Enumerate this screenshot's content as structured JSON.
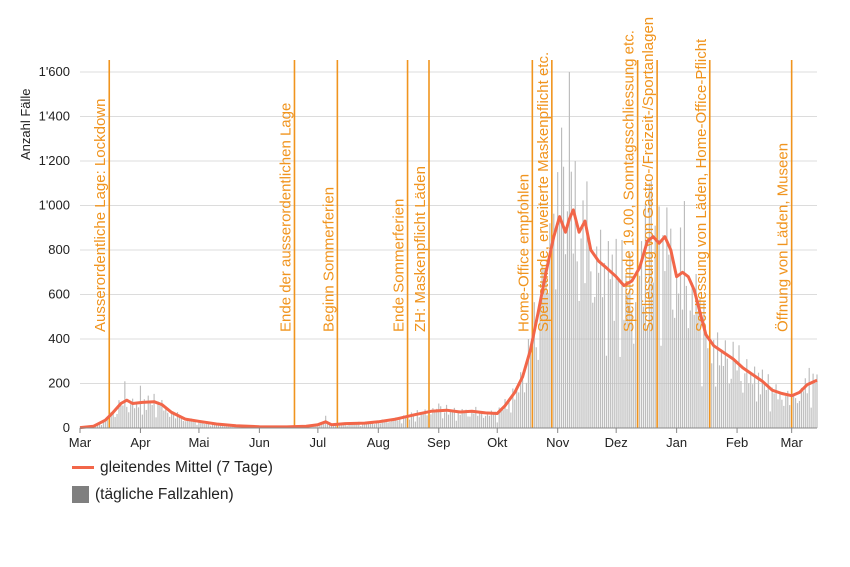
{
  "chart_data": {
    "type": "bar",
    "ylabel": "Anzahl Fälle",
    "ylim": [
      0,
      1600
    ],
    "yticks": [
      0,
      200,
      400,
      600,
      800,
      1000,
      1200,
      1400,
      1600
    ],
    "ytick_labels": [
      "0",
      "200",
      "400",
      "600",
      "800",
      "1'000",
      "1'200",
      "1'400",
      "1'600"
    ],
    "grid": true,
    "xtick_labels": [
      "Mar",
      "Apr",
      "Mai",
      "Jun",
      "Jul",
      "Aug",
      "Sep",
      "Okt",
      "Nov",
      "Dez",
      "Jan",
      "Feb",
      "Mar"
    ],
    "x_range": [
      "2020-03-01",
      "2021-03-14"
    ],
    "series": [
      {
        "name": "gleitendes Mittel (7 Tage)",
        "type": "line",
        "color": "#f26649",
        "points": [
          [
            "2020-03-01",
            2
          ],
          [
            "2020-03-08",
            8
          ],
          [
            "2020-03-14",
            35
          ],
          [
            "2020-03-18",
            70
          ],
          [
            "2020-03-22",
            110
          ],
          [
            "2020-03-25",
            125
          ],
          [
            "2020-03-28",
            110
          ],
          [
            "2020-04-02",
            115
          ],
          [
            "2020-04-08",
            118
          ],
          [
            "2020-04-12",
            105
          ],
          [
            "2020-04-17",
            70
          ],
          [
            "2020-04-24",
            40
          ],
          [
            "2020-05-01",
            30
          ],
          [
            "2020-05-10",
            18
          ],
          [
            "2020-05-20",
            10
          ],
          [
            "2020-06-01",
            6
          ],
          [
            "2020-06-15",
            5
          ],
          [
            "2020-06-25",
            8
          ],
          [
            "2020-07-01",
            15
          ],
          [
            "2020-07-05",
            28
          ],
          [
            "2020-07-08",
            15
          ],
          [
            "2020-07-15",
            20
          ],
          [
            "2020-07-25",
            22
          ],
          [
            "2020-08-01",
            28
          ],
          [
            "2020-08-10",
            40
          ],
          [
            "2020-08-20",
            60
          ],
          [
            "2020-08-28",
            75
          ],
          [
            "2020-09-05",
            80
          ],
          [
            "2020-09-12",
            72
          ],
          [
            "2020-09-18",
            75
          ],
          [
            "2020-09-25",
            68
          ],
          [
            "2020-10-01",
            65
          ],
          [
            "2020-10-05",
            100
          ],
          [
            "2020-10-10",
            160
          ],
          [
            "2020-10-14",
            230
          ],
          [
            "2020-10-18",
            350
          ],
          [
            "2020-10-22",
            520
          ],
          [
            "2020-10-26",
            700
          ],
          [
            "2020-10-30",
            860
          ],
          [
            "2020-11-02",
            950
          ],
          [
            "2020-11-05",
            880
          ],
          [
            "2020-11-07",
            940
          ],
          [
            "2020-11-09",
            980
          ],
          [
            "2020-11-12",
            880
          ],
          [
            "2020-11-15",
            930
          ],
          [
            "2020-11-18",
            800
          ],
          [
            "2020-11-22",
            750
          ],
          [
            "2020-11-26",
            720
          ],
          [
            "2020-12-01",
            680
          ],
          [
            "2020-12-05",
            640
          ],
          [
            "2020-12-09",
            660
          ],
          [
            "2020-12-13",
            720
          ],
          [
            "2020-12-17",
            840
          ],
          [
            "2020-12-20",
            860
          ],
          [
            "2020-12-23",
            830
          ],
          [
            "2020-12-26",
            860
          ],
          [
            "2020-12-29",
            800
          ],
          [
            "2021-01-01",
            680
          ],
          [
            "2021-01-04",
            700
          ],
          [
            "2021-01-07",
            680
          ],
          [
            "2021-01-10",
            620
          ],
          [
            "2021-01-13",
            520
          ],
          [
            "2021-01-16",
            420
          ],
          [
            "2021-01-20",
            370
          ],
          [
            "2021-01-25",
            340
          ],
          [
            "2021-01-30",
            310
          ],
          [
            "2021-02-04",
            270
          ],
          [
            "2021-02-09",
            240
          ],
          [
            "2021-02-14",
            210
          ],
          [
            "2021-02-19",
            170
          ],
          [
            "2021-02-24",
            155
          ],
          [
            "2021-03-01",
            145
          ],
          [
            "2021-03-05",
            160
          ],
          [
            "2021-03-09",
            195
          ],
          [
            "2021-03-14",
            215
          ]
        ]
      },
      {
        "name": "(tägliche Fallzahlen)",
        "type": "bar",
        "color": "#bdbdbd",
        "legend_color": "#7f7f7f",
        "noise_pattern": [
          0.82,
          1.18,
          0.95,
          1.12,
          0.7,
          1.25,
          1.0,
          0.88,
          1.3,
          0.76,
          1.07,
          0.93,
          1.2,
          0.8,
          1.02
        ],
        "peaks": [
          [
            "2020-03-24",
            210
          ],
          [
            "2020-04-01",
            190
          ],
          [
            "2020-07-05",
            55
          ],
          [
            "2020-09-01",
            110
          ],
          [
            "2020-10-25",
            720
          ],
          [
            "2020-11-03",
            1350
          ],
          [
            "2020-11-05",
            1420
          ],
          [
            "2020-11-07",
            1640
          ],
          [
            "2020-11-10",
            1200
          ],
          [
            "2020-12-18",
            1100
          ],
          [
            "2021-01-05",
            1020
          ],
          [
            "2021-03-10",
            270
          ]
        ]
      }
    ],
    "annotations": [
      {
        "date": "2020-03-16",
        "label": "Ausserordentliche Lage: Lockdown"
      },
      {
        "date": "2020-06-19",
        "label": "Ende der ausserordentlichen Lage"
      },
      {
        "date": "2020-07-11",
        "label": "Beginn Sommerferien"
      },
      {
        "date": "2020-08-16",
        "label": "Ende Sommerferien"
      },
      {
        "date": "2020-08-27",
        "label": "ZH: Maskenpflicht Läden"
      },
      {
        "date": "2020-10-19",
        "label": "Home-Office empfohlen"
      },
      {
        "date": "2020-10-29",
        "label": "Sperrstunde, erweiterte Maskenpflicht etc."
      },
      {
        "date": "2020-12-12",
        "label": "Sperrstunde 19.00, Sonntagsschliessung etc."
      },
      {
        "date": "2020-12-22",
        "label": "Schliessung von Gastro-/Freizeit-/Sportanlagen"
      },
      {
        "date": "2021-01-18",
        "label": "Schliessung von Läden, Home-Office-Pflicht"
      },
      {
        "date": "2021-03-01",
        "label": "Öffnung von Läden, Museen"
      }
    ],
    "annotation_color": "#f0941e"
  },
  "legend": {
    "line_label": "gleitendes Mittel (7 Tage)",
    "bar_label": "(tägliche Fallzahlen)"
  }
}
